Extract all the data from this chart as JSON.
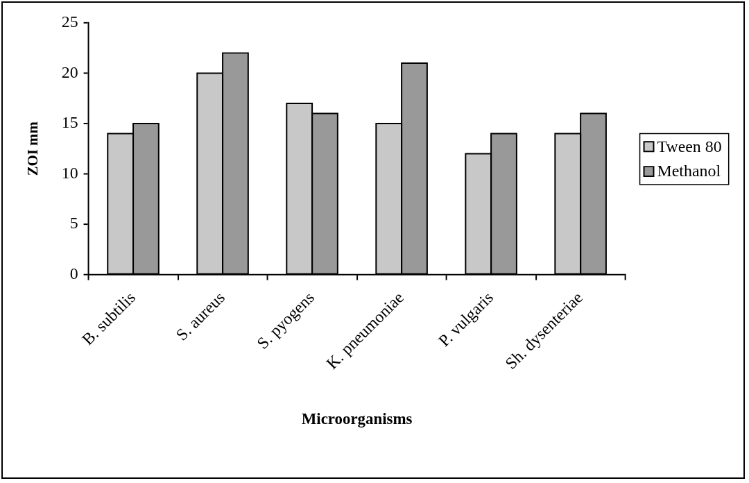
{
  "chart_data": {
    "type": "bar",
    "xlabel": "Microorganisms",
    "ylabel": "ZOI mm",
    "categories": [
      "B. subtilis",
      "S. aureus",
      "S. pyogens",
      "K. pneumoniae",
      "P. vulgaris",
      "Sh. dysenteriae"
    ],
    "series": [
      {
        "name": "Tween 80",
        "color": "#c8c8c8",
        "values": [
          14,
          20,
          17,
          15,
          12,
          14
        ]
      },
      {
        "name": "Methanol",
        "color": "#999999",
        "values": [
          15,
          22,
          16,
          21,
          14,
          16
        ]
      }
    ],
    "ylim": [
      0,
      25
    ],
    "yticks": [
      0,
      5,
      10,
      15,
      20,
      25
    ],
    "legend": "right"
  }
}
